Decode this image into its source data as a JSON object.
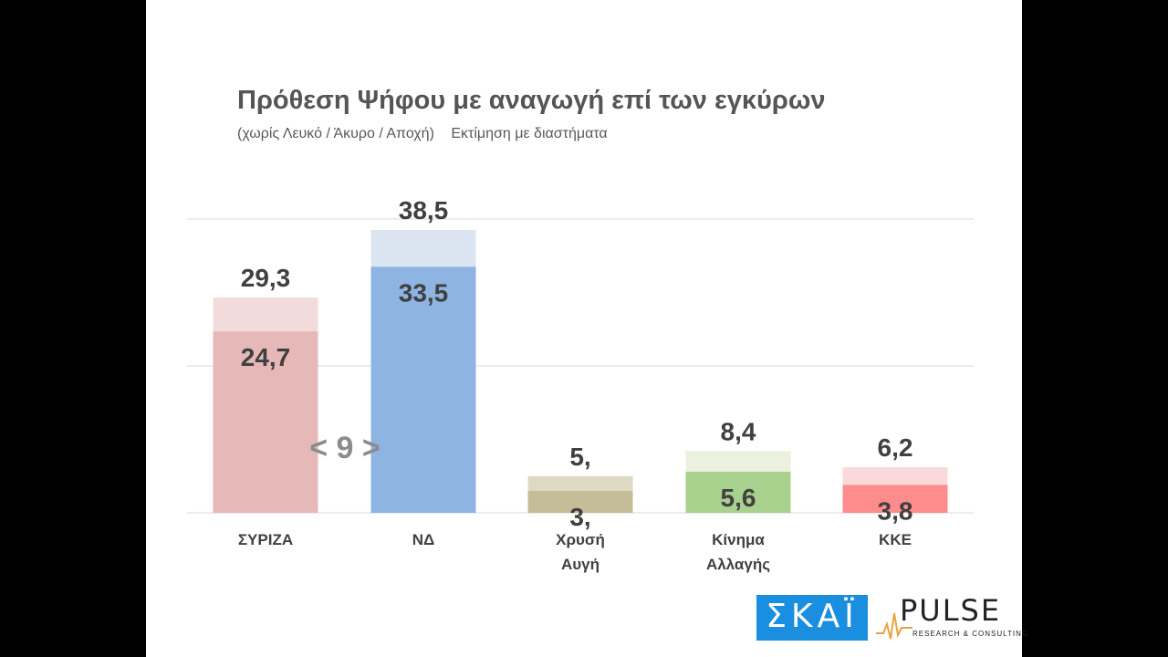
{
  "title": "Πρόθεση Ψήφου με αναγωγή επί των εγκύρων",
  "subtitle": "(χωρίς Λευκό / Άκυρο / Αποχή)",
  "subtitle_note": "Εκτίμηση με διαστήματα",
  "gap_label": "< 9 >",
  "logos": {
    "skai": "ΣΚΑΪ",
    "pulse": "PULSE",
    "pulse_tagline": "RESEARCH & CONSULTING"
  },
  "colors": {
    "syriza_low": "#e6b9b8",
    "syriza_high": "#f2dcdb",
    "nd_low": "#8eb4e3",
    "nd_high": "#dbe5f1",
    "xa_low": "#c4bd97",
    "xa_high": "#ddd9c3",
    "kinal_low": "#a9d18e",
    "kinal_high": "#ebf1de",
    "kke_low": "#ff8c8c",
    "kke_high": "#f9d9d9"
  },
  "chart_data": {
    "type": "bar",
    "categories": [
      "ΣΥΡΙΖΑ",
      "ΝΔ",
      "Χρυσή Αυγή",
      "Κίνημα Αλλαγής",
      "ΚΚΕ"
    ],
    "category_lines": [
      [
        "ΣΥΡΙΖΑ"
      ],
      [
        "ΝΔ"
      ],
      [
        "Χρυσή",
        "Αυγή"
      ],
      [
        "Κίνημα",
        "Αλλαγής"
      ],
      [
        "ΚΚΕ"
      ]
    ],
    "series": [
      {
        "values": [
          24.7,
          33.5,
          3,
          5.6,
          3.8
        ],
        "labels": [
          "24,7",
          "33,5",
          "3,",
          "5,6",
          "3,8"
        ]
      },
      {
        "values": [
          29.3,
          38.5,
          5,
          8.4,
          6.2
        ],
        "labels": [
          "29,3",
          "38,5",
          "5,",
          "8,4",
          "6,2"
        ]
      }
    ],
    "ylim": [
      0,
      40
    ],
    "grid": true,
    "legend": "none"
  }
}
